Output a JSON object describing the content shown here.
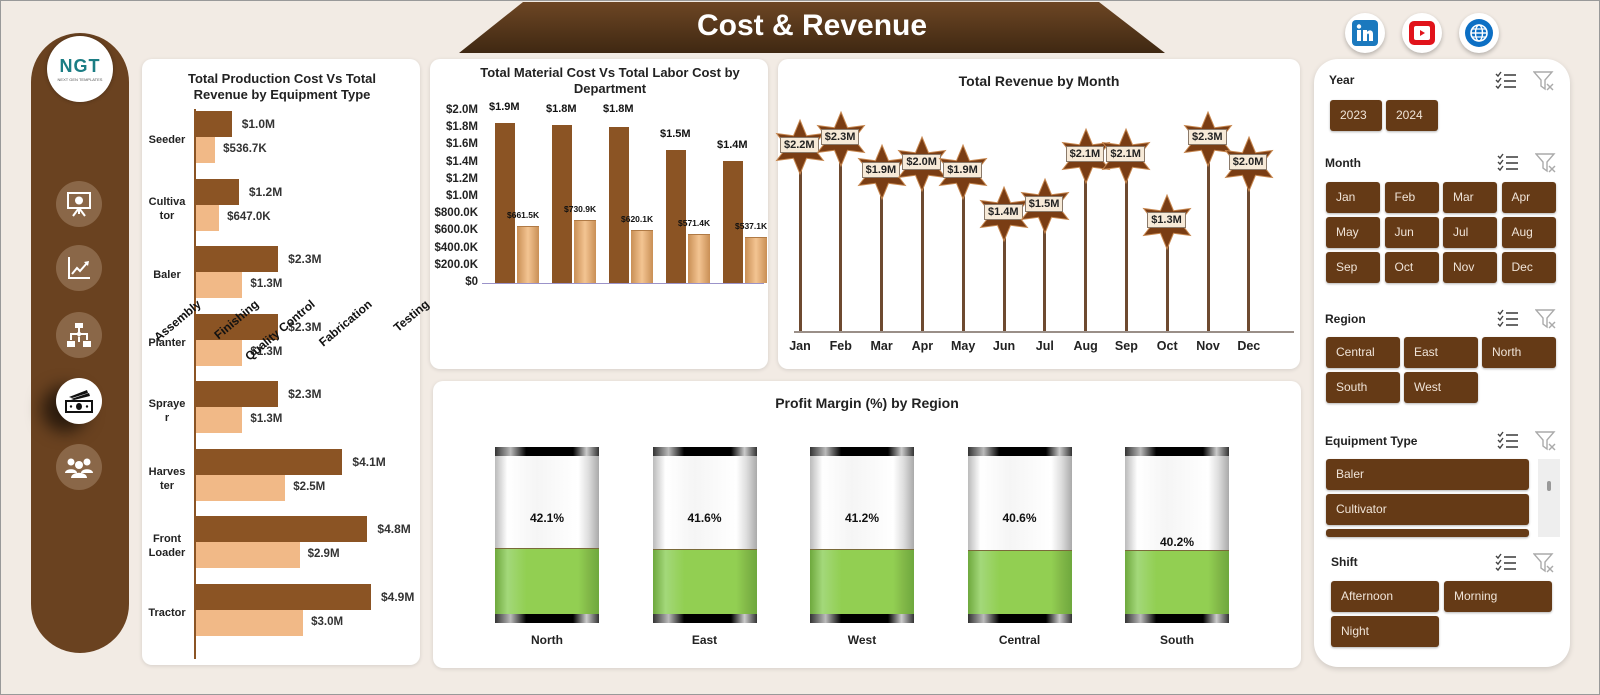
{
  "header": {
    "title": "Cost & Revenue"
  },
  "social": [
    {
      "name": "linkedin",
      "icon": "linkedin-icon",
      "color": "#1b79be"
    },
    {
      "name": "youtube",
      "icon": "youtube-icon",
      "color": "#e1131b"
    },
    {
      "name": "website",
      "icon": "globe-icon",
      "color": "#0c6fc4"
    }
  ],
  "sidebar": {
    "logo_text": "NGT",
    "logo_sub": "NEXT GEN TEMPLATES",
    "items": [
      {
        "name": "presentation",
        "icon": "presentation-chart-icon",
        "active": false
      },
      {
        "name": "trend",
        "icon": "line-chart-icon",
        "active": false
      },
      {
        "name": "flowchart",
        "icon": "flowchart-icon",
        "active": false
      },
      {
        "name": "cost-revenue",
        "icon": "money-icon",
        "active": true
      },
      {
        "name": "team",
        "icon": "people-icon",
        "active": false
      }
    ]
  },
  "colors": {
    "brown_dark": "#653a16",
    "brown_bar": "#8b5424",
    "tan_bar": "#f1b987",
    "green_fill": "#92cf52",
    "background": "#f2ebe4"
  },
  "chart_data": [
    {
      "type": "bar",
      "orientation": "horizontal",
      "title": "Total Production Cost Vs Total Revenue by Equipment Type",
      "categories": [
        "Seeder",
        "Cultivator",
        "Baler",
        "Planter",
        "Sprayer",
        "Harvester",
        "Front Loader",
        "Tractor"
      ],
      "category_labels": [
        [
          "Seeder"
        ],
        [
          "Cultiva",
          "tor"
        ],
        [
          "Baler"
        ],
        [
          "Planter"
        ],
        [
          "Spraye",
          "r"
        ],
        [
          "Harves",
          "ter"
        ],
        [
          "Front",
          "Loader"
        ],
        [
          "Tractor"
        ]
      ],
      "series": [
        {
          "name": "Total Revenue",
          "values": [
            1.0,
            1.2,
            2.3,
            2.3,
            2.3,
            4.1,
            4.8,
            4.9
          ],
          "labels": [
            "$1.0M",
            "$1.2M",
            "$2.3M",
            "$2.3M",
            "$2.3M",
            "$4.1M",
            "$4.8M",
            "$4.9M"
          ]
        },
        {
          "name": "Total Production Cost",
          "values": [
            0.5367,
            0.647,
            1.3,
            1.3,
            1.3,
            2.5,
            2.9,
            3.0
          ],
          "labels": [
            "$536.7K",
            "$647.0K",
            "$1.3M",
            "$1.3M",
            "$1.3M",
            "$2.5M",
            "$2.9M",
            "$3.0M"
          ]
        }
      ]
    },
    {
      "type": "bar",
      "title": "Total Material Cost Vs Total Labor Cost by Department",
      "categories": [
        "Assembly",
        "Finishing",
        "Quality Control",
        "Fabrication",
        "Testing"
      ],
      "yticks": [
        "$2.0M",
        "$1.8M",
        "$1.6M",
        "$1.4M",
        "$1.2M",
        "$1.0M",
        "$800.0K",
        "$600.0K",
        "$400.0K",
        "$200.0K",
        "$0"
      ],
      "ylim": [
        0,
        2.0
      ],
      "series": [
        {
          "name": "Total Material Cost",
          "values": [
            1.86,
            1.84,
            1.81,
            1.55,
            1.42
          ],
          "labels": [
            "$1.9M",
            "$1.8M",
            "$1.8M",
            "$1.5M",
            "$1.4M"
          ]
        },
        {
          "name": "Total Labor Cost",
          "values": [
            0.6615,
            0.7309,
            0.6201,
            0.5714,
            0.5371
          ],
          "labels": [
            "$661.5K",
            "$730.9K",
            "$620.1K",
            "$571.4K",
            "$537.1K"
          ]
        }
      ]
    },
    {
      "type": "line",
      "style": "lollipop-star",
      "title": "Total Revenue  by Month",
      "categories": [
        "Jan",
        "Feb",
        "Mar",
        "Apr",
        "May",
        "Jun",
        "Jul",
        "Aug",
        "Sep",
        "Oct",
        "Nov",
        "Dec"
      ],
      "values": [
        2.2,
        2.3,
        1.9,
        2.0,
        1.9,
        1.4,
        1.5,
        2.1,
        2.1,
        1.3,
        2.3,
        2.0
      ],
      "labels": [
        "$2.2M",
        "$2.3M",
        "$1.9M",
        "$2.0M",
        "$1.9M",
        "$1.4M",
        "$1.5M",
        "$2.1M",
        "$2.1M",
        "$1.3M",
        "$2.3M",
        "$2.0M"
      ]
    },
    {
      "type": "bar",
      "style": "cylinder-gauge",
      "title": "Profit Margin (%) by Region",
      "categories": [
        "North",
        "East",
        "West",
        "Central",
        "South"
      ],
      "values": [
        42.1,
        41.6,
        41.2,
        40.6,
        40.2
      ],
      "labels": [
        "42.1%",
        "41.6%",
        "41.2%",
        "40.6%",
        "40.2%"
      ]
    }
  ],
  "filters": {
    "year": {
      "title": "Year",
      "options": [
        "2023",
        "2024"
      ]
    },
    "month": {
      "title": "Month",
      "options": [
        "Jan",
        "Feb",
        "Mar",
        "Apr",
        "May",
        "Jun",
        "Jul",
        "Aug",
        "Sep",
        "Oct",
        "Nov",
        "Dec"
      ]
    },
    "region": {
      "title": "Region",
      "options": [
        "Central",
        "East",
        "North",
        "South",
        "West"
      ]
    },
    "equipment": {
      "title": "Equipment Type",
      "options": [
        "Baler",
        "Cultivator",
        ""
      ]
    },
    "shift": {
      "title": "Shift",
      "options": [
        "Afternoon",
        "Morning",
        "Night"
      ]
    }
  }
}
